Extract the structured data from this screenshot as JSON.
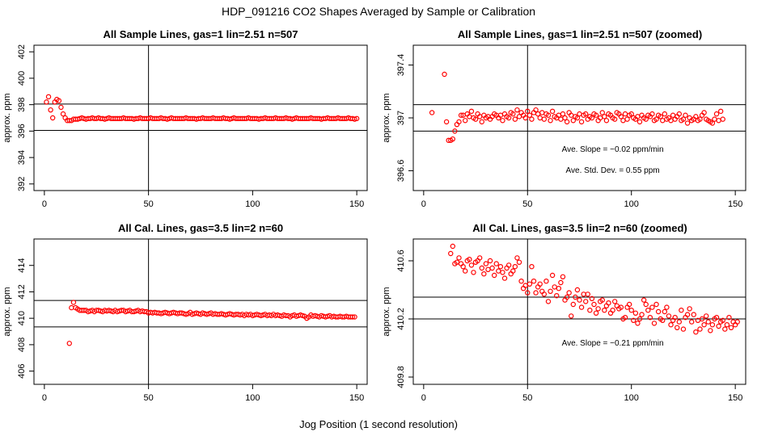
{
  "figure": {
    "title": "HDP_091216  CO2 Shapes Averaged by Sample or Calibration",
    "xlabel": "Jog Position (1 second resolution)"
  },
  "chart_data": [
    {
      "type": "scatter",
      "title": "All Sample Lines, gas=1 lin=2.51 n=507",
      "xlabel": "",
      "ylabel": "approx. ppm",
      "xlim": [
        -5,
        155
      ],
      "ylim": [
        391.5,
        402.5
      ],
      "xticks": [
        0,
        50,
        100,
        150
      ],
      "yticks": [
        392,
        394,
        396,
        398,
        400,
        402
      ],
      "hlines": [
        396.05,
        398.05
      ],
      "vline": 50,
      "color": "#ff0000",
      "annotations": [],
      "x_start": 1,
      "y": [
        398.2,
        398.6,
        397.6,
        397.0,
        398.2,
        398.4,
        398.3,
        397.8,
        397.3,
        397.0,
        396.8,
        396.8,
        396.8,
        396.9,
        396.9,
        396.9,
        396.95,
        397.0,
        396.95,
        396.9,
        396.95,
        396.95,
        397.0,
        396.95,
        396.95,
        397.0,
        396.95,
        396.95,
        396.9,
        396.95,
        397.0,
        396.95,
        396.95,
        396.95,
        396.95,
        396.95,
        396.95,
        397.0,
        396.95,
        396.95,
        396.95,
        396.95,
        396.9,
        396.95,
        396.95,
        397.0,
        396.95,
        396.95,
        396.95,
        396.95,
        397.0,
        396.95,
        396.95,
        396.95,
        396.95,
        397.0,
        396.95,
        396.95,
        396.9,
        396.95,
        397.0,
        396.95,
        396.95,
        396.95,
        396.95,
        396.95,
        396.95,
        397.0,
        396.95,
        396.95,
        396.95,
        396.95,
        396.9,
        396.95,
        396.95,
        397.0,
        396.95,
        396.95,
        396.95,
        396.95,
        397.0,
        396.95,
        396.95,
        396.95,
        396.95,
        397.0,
        396.95,
        396.95,
        396.9,
        396.95,
        397.0,
        396.95,
        396.95,
        396.95,
        396.95,
        396.95,
        396.95,
        397.0,
        396.95,
        396.95,
        396.95,
        396.95,
        396.9,
        396.95,
        396.95,
        397.0,
        396.95,
        396.95,
        396.95,
        396.95,
        397.0,
        396.95,
        396.95,
        396.95,
        396.95,
        397.0,
        396.95,
        396.95,
        396.9,
        396.95,
        397.0,
        396.95,
        396.95,
        396.95,
        396.95,
        396.95,
        396.95,
        397.0,
        396.95,
        396.95,
        396.95,
        396.95,
        396.9,
        396.95,
        396.95,
        397.0,
        396.95,
        396.95,
        396.95,
        396.95,
        397.0,
        396.95,
        396.95,
        396.95,
        396.95,
        397.0,
        396.95,
        396.95,
        396.9,
        396.95
      ]
    },
    {
      "type": "scatter",
      "title": "All Sample Lines, gas=1 lin=2.51 n=507 (zoomed)",
      "xlabel": "",
      "ylabel": "approx. ppm",
      "xlim": [
        -5,
        155
      ],
      "ylim": [
        396.45,
        397.55
      ],
      "xticks": [
        0,
        50,
        100,
        150
      ],
      "yticks": [
        396.6,
        397.0,
        397.4
      ],
      "hlines": [
        396.9,
        397.1
      ],
      "vline": 50,
      "color": "#ff0000",
      "annotations": [
        "Ave. Slope =  −0.02  ppm/min",
        "Ave. Std. Dev. =  0.55  ppm"
      ],
      "x_start": 4,
      "y": [
        397.04,
        null,
        null,
        null,
        null,
        null,
        397.33,
        396.97,
        396.83,
        396.83,
        396.84,
        396.9,
        396.95,
        396.97,
        397.02,
        397.02,
        396.98,
        397.03,
        397.01,
        397.05,
        397.0,
        396.99,
        397.03,
        397.01,
        396.97,
        397.02,
        397.0,
        397.01,
        396.99,
        397.01,
        397.03,
        397.02,
        397.0,
        397.02,
        396.98,
        397.03,
        397.01,
        397.0,
        397.04,
        397.03,
        396.99,
        397.06,
        397.01,
        397.04,
        397.02,
        397.0,
        397.05,
        397.02,
        396.99,
        397.04,
        397.06,
        397.03,
        397.0,
        397.04,
        396.99,
        397.03,
        397.02,
        396.98,
        397.05,
        397.01,
        397.0,
        397.02,
        396.99,
        397.03,
        397.0,
        396.97,
        397.04,
        397.02,
        396.98,
        397.01,
        397.0,
        397.03,
        396.97,
        397.02,
        397.03,
        396.99,
        397.01,
        397.0,
        397.03,
        397.02,
        396.98,
        397.0,
        397.04,
        397.01,
        396.98,
        397.03,
        397.02,
        397.0,
        396.99,
        397.04,
        397.03,
        397.01,
        396.98,
        397.03,
        396.99,
        397.02,
        397.03,
        397.0,
        396.99,
        397.01,
        396.97,
        397.02,
        397.0,
        396.99,
        397.02,
        397.01,
        397.03,
        396.98,
        396.99,
        397.02,
        397.01,
        396.98,
        397.03,
        396.99,
        397.0,
        396.98,
        397.02,
        396.99,
        397.01,
        397.03,
        396.98,
        396.99,
        397.02,
        396.96,
        397.0,
        396.98,
        396.99,
        397.01,
        396.98,
        396.99,
        397.02,
        397.04,
        396.99,
        396.98,
        396.97,
        396.96,
        396.99,
        397.03,
        396.98,
        397.05,
        396.99
      ]
    },
    {
      "type": "scatter",
      "title": "All Cal. Lines, gas=3.5 lin=2 n=60",
      "xlabel": "",
      "ylabel": "approx. ppm",
      "xlim": [
        -5,
        155
      ],
      "ylim": [
        405.0,
        416.0
      ],
      "xticks": [
        0,
        50,
        100,
        150
      ],
      "yticks": [
        406,
        408,
        410,
        412,
        414
      ],
      "hlines": [
        409.35,
        411.35
      ],
      "vline": 50,
      "color": "#ff0000",
      "annotations": [],
      "x_start": 12,
      "y": [
        408.1,
        410.8,
        411.2,
        410.8,
        410.7,
        410.6,
        410.6,
        410.6,
        410.6,
        410.5,
        410.55,
        410.6,
        410.5,
        410.6,
        410.6,
        410.55,
        410.5,
        410.6,
        410.55,
        410.6,
        410.55,
        410.5,
        410.6,
        410.5,
        410.55,
        410.6,
        410.6,
        410.5,
        410.55,
        410.6,
        410.5,
        410.5,
        410.55,
        410.6,
        410.5,
        410.55,
        410.5,
        410.5,
        410.4,
        410.45,
        410.4,
        410.45,
        410.4,
        410.4,
        410.35,
        410.4,
        410.45,
        410.4,
        410.35,
        410.4,
        410.45,
        410.4,
        410.35,
        410.4,
        410.4,
        410.35,
        410.3,
        410.35,
        410.45,
        410.3,
        410.35,
        410.4,
        410.35,
        410.3,
        410.4,
        410.35,
        410.3,
        410.35,
        410.4,
        410.3,
        410.35,
        410.3,
        410.3,
        410.35,
        410.3,
        410.25,
        410.3,
        410.35,
        410.3,
        410.25,
        410.3,
        410.3,
        410.25,
        410.3,
        410.2,
        410.3,
        410.25,
        410.3,
        410.2,
        410.25,
        410.3,
        410.25,
        410.2,
        410.25,
        410.3,
        410.2,
        410.25,
        410.2,
        410.3,
        410.2,
        410.25,
        410.2,
        410.15,
        410.25,
        410.2,
        410.2,
        410.1,
        410.2,
        410.25,
        410.15,
        410.2,
        410.25,
        410.2,
        410.15,
        410.0,
        410.1,
        410.25,
        410.15,
        410.2,
        410.15,
        410.1,
        410.2,
        410.15,
        410.1,
        410.15,
        410.2,
        410.1,
        410.15,
        410.1,
        410.1,
        410.15,
        410.1,
        410.1,
        410.15,
        410.1,
        410.1,
        410.1,
        410.1
      ]
    },
    {
      "type": "scatter",
      "title": "All Cal. Lines, gas=3.5 lin=2 n=60 (zoomed)",
      "xlabel": "",
      "ylabel": "approx. ppm",
      "xlim": [
        -5,
        155
      ],
      "ylim": [
        409.75,
        410.75
      ],
      "xticks": [
        0,
        50,
        100,
        150
      ],
      "yticks": [
        409.8,
        410.2,
        410.6
      ],
      "hlines": [
        410.2,
        410.35
      ],
      "vline": 50,
      "color": "#ff0000",
      "annotations": [
        "Ave. Slope =  −0.21  ppm/min"
      ],
      "x_start": 13,
      "y": [
        410.65,
        410.7,
        410.58,
        410.59,
        410.62,
        410.58,
        410.56,
        410.53,
        410.6,
        410.61,
        410.57,
        410.52,
        410.59,
        410.6,
        410.62,
        410.55,
        410.51,
        410.58,
        410.54,
        410.6,
        410.55,
        410.5,
        410.58,
        410.53,
        410.56,
        410.52,
        410.48,
        410.55,
        410.57,
        410.51,
        410.53,
        410.56,
        410.62,
        410.59,
        410.46,
        410.41,
        410.43,
        410.38,
        410.44,
        410.56,
        410.46,
        410.38,
        410.42,
        410.44,
        410.39,
        410.37,
        410.46,
        410.32,
        410.39,
        410.5,
        410.42,
        410.36,
        410.41,
        410.45,
        410.49,
        410.33,
        410.35,
        410.38,
        410.22,
        410.3,
        410.35,
        410.4,
        410.33,
        410.28,
        410.37,
        410.32,
        410.37,
        410.26,
        410.34,
        410.3,
        410.24,
        410.27,
        410.32,
        410.33,
        410.26,
        410.29,
        410.31,
        410.24,
        410.26,
        410.32,
        410.29,
        410.27,
        410.28,
        410.2,
        410.21,
        410.28,
        410.3,
        410.26,
        410.19,
        410.24,
        410.17,
        410.2,
        410.23,
        410.33,
        410.3,
        410.26,
        410.21,
        410.28,
        410.17,
        410.3,
        410.25,
        410.2,
        410.19,
        410.25,
        410.28,
        410.22,
        410.16,
        410.19,
        410.21,
        410.14,
        410.18,
        410.26,
        410.13,
        410.21,
        410.23,
        410.27,
        410.18,
        410.23,
        410.11,
        410.19,
        410.13,
        410.2,
        410.16,
        410.22,
        410.18,
        410.12,
        410.16,
        410.2,
        410.21,
        410.15,
        410.18,
        410.19,
        410.13,
        410.16,
        410.21,
        410.14,
        410.18,
        410.16,
        410.18
      ]
    }
  ]
}
